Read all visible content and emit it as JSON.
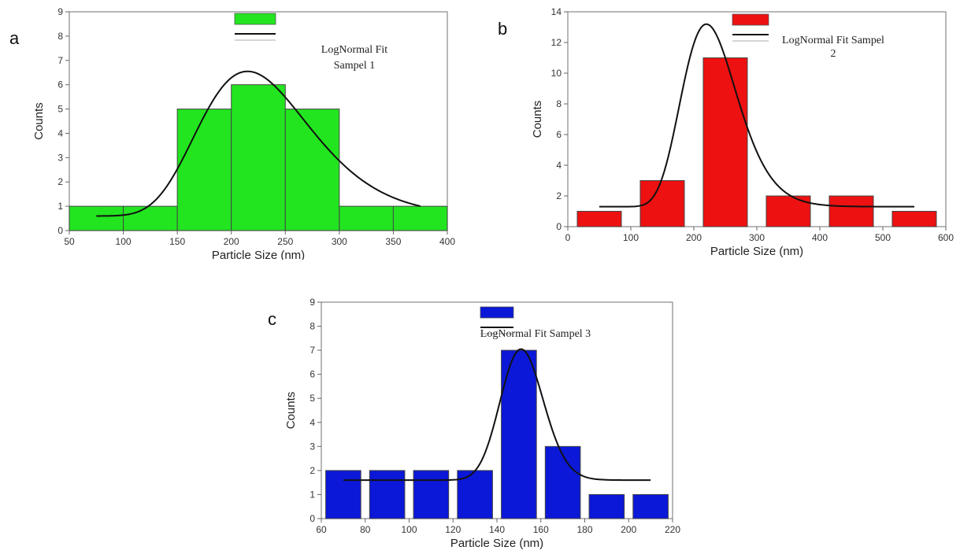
{
  "panel_labels": [
    "a",
    "b",
    "c"
  ],
  "chart_data": [
    {
      "type": "bar",
      "panel": "a",
      "bar_color": "#22e51f",
      "x": [
        75,
        125,
        175,
        225,
        275,
        325,
        375
      ],
      "bar_width": 50,
      "values": [
        1,
        1,
        5,
        6,
        5,
        1,
        1
      ],
      "xlabel": "Particle Size (nm)",
      "ylabel": "Counts",
      "xlim": [
        50,
        400
      ],
      "ylim": [
        0,
        9
      ],
      "xticks": [
        50,
        100,
        150,
        200,
        250,
        300,
        350,
        400
      ],
      "yticks": [
        0,
        1,
        2,
        3,
        4,
        5,
        6,
        7,
        8,
        9
      ],
      "legend_text": [
        "LogNormal Fit",
        "Sampel 1"
      ],
      "fit": {
        "name": "LogNormal Fit",
        "x_start": 75,
        "x_end": 375,
        "baseline": 0.6,
        "peak_x": 215,
        "peak_y": 6.55,
        "sigma": 0.24
      }
    },
    {
      "type": "bar",
      "panel": "b",
      "bar_color": "#ee1111",
      "x": [
        50,
        150,
        250,
        350,
        450,
        550
      ],
      "bar_width": 70,
      "values": [
        1,
        3,
        11,
        2,
        2,
        1
      ],
      "xlabel": "Particle Size (nm)",
      "ylabel": "Counts",
      "xlim": [
        0,
        600
      ],
      "ylim": [
        0,
        14
      ],
      "xticks": [
        0,
        100,
        200,
        300,
        400,
        500,
        600
      ],
      "yticks": [
        0,
        2,
        4,
        6,
        8,
        10,
        12,
        14
      ],
      "legend_text": [
        "LogNormal Fit Sampel",
        "2"
      ],
      "fit": {
        "name": "LogNormal Fit",
        "x_start": 50,
        "x_end": 550,
        "baseline": 1.3,
        "peak_x": 220,
        "peak_y": 13.2,
        "sigma": 0.2
      }
    },
    {
      "type": "bar",
      "panel": "c",
      "bar_color": "#0b18d8",
      "x": [
        70,
        90,
        110,
        130,
        150,
        170,
        190,
        210
      ],
      "bar_width": 16,
      "values": [
        2,
        2,
        2,
        2,
        7,
        3,
        1,
        1
      ],
      "xlabel": "Particle Size (nm)",
      "ylabel": "Counts",
      "xlim": [
        60,
        220
      ],
      "ylim": [
        0,
        9
      ],
      "xticks": [
        60,
        80,
        100,
        120,
        140,
        160,
        180,
        200,
        220
      ],
      "yticks": [
        0,
        1,
        2,
        3,
        4,
        5,
        6,
        7,
        8,
        9
      ],
      "legend_text": [
        "LogNormal Fit Sampel 3"
      ],
      "fit": {
        "name": "LogNormal Fit",
        "x_start": 70,
        "x_end": 210,
        "baseline": 1.6,
        "peak_x": 151,
        "peak_y": 7.05,
        "sigma": 0.065
      }
    }
  ]
}
